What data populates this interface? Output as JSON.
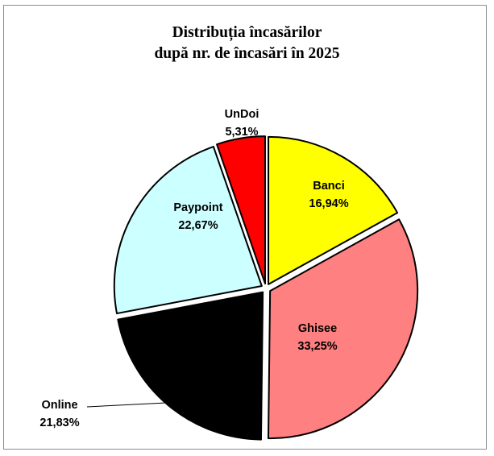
{
  "chart_data": {
    "type": "pie",
    "title": [
      "Distribuția încasărilor",
      "după nr. de încasări în 2025"
    ],
    "slices": [
      {
        "name": "Banci",
        "value": 16.94,
        "label": "16,94%",
        "color": "#ffff00"
      },
      {
        "name": "Ghisee",
        "value": 33.25,
        "label": "33,25%",
        "color": "#ff8080"
      },
      {
        "name": "Online",
        "value": 21.83,
        "label": "21,83%",
        "color": "#000000"
      },
      {
        "name": "Paypoint",
        "value": 22.67,
        "label": "22,67%",
        "color": "#ccffff"
      },
      {
        "name": "UnDoi",
        "value": 5.31,
        "label": "5,31%",
        "color": "#ff0000"
      }
    ],
    "exploded": true,
    "legend": "none"
  }
}
